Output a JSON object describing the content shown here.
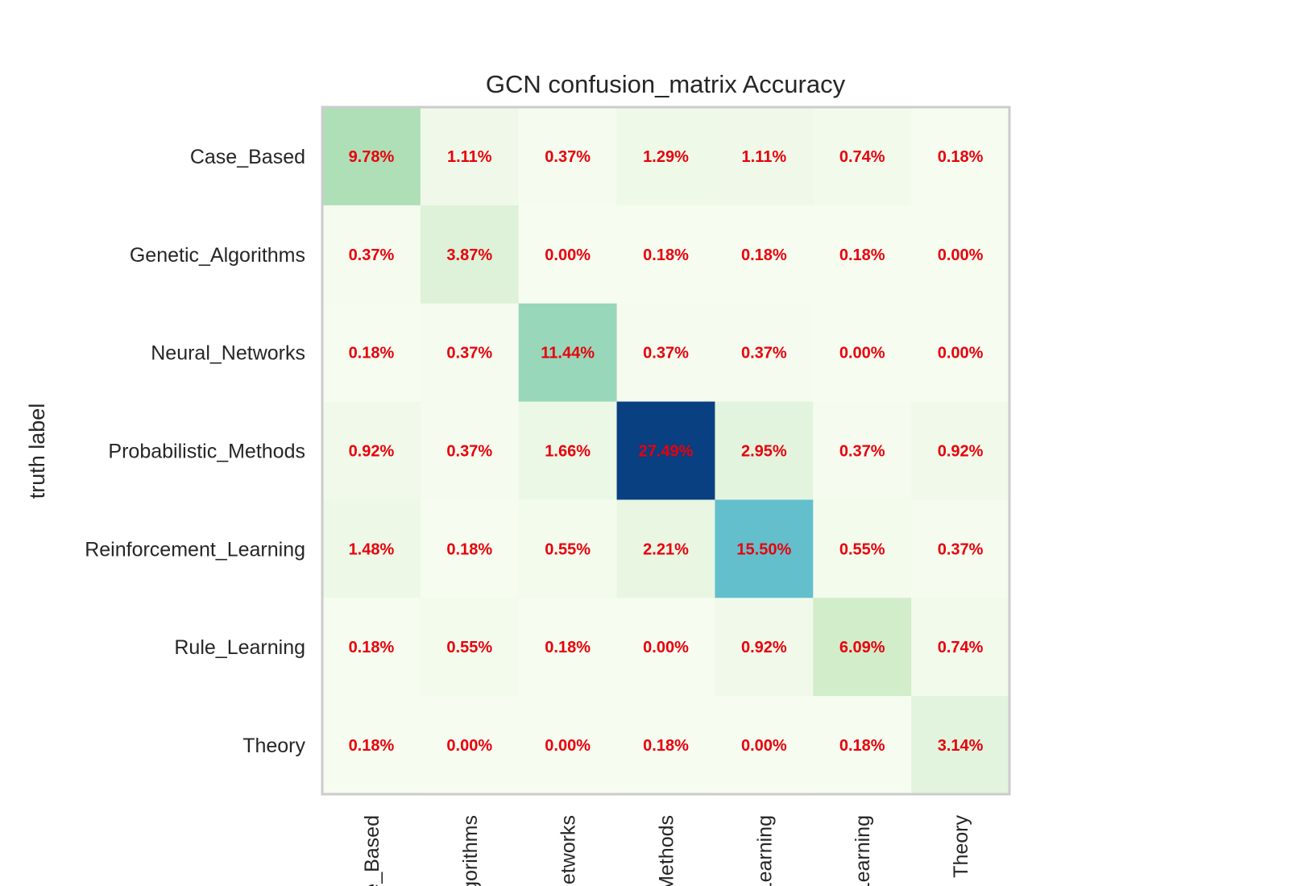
{
  "chart_data": {
    "type": "heatmap",
    "title": "GCN confusion_matrix Accuracy",
    "ylabel": "truth label",
    "xlabel": "",
    "row_labels": [
      "Case_Based",
      "Genetic_Algorithms",
      "Neural_Networks",
      "Probabilistic_Methods",
      "Reinforcement_Learning",
      "Rule_Learning",
      "Theory"
    ],
    "col_labels": [
      "Case_Based",
      "Genetic_Algorithms",
      "Neural_Networks",
      "Probabilistic_Methods",
      "Reinforcement_Learning",
      "Rule_Learning",
      "Theory"
    ],
    "col_labels_visible": [
      "e_Based",
      "gorithms",
      "etworks",
      "Methods",
      "Learning",
      "Learning",
      "Theory"
    ],
    "values": [
      [
        9.78,
        1.11,
        0.37,
        1.29,
        1.11,
        0.74,
        0.18
      ],
      [
        0.37,
        3.87,
        0.0,
        0.18,
        0.18,
        0.18,
        0.0
      ],
      [
        0.18,
        0.37,
        11.44,
        0.37,
        0.37,
        0.0,
        0.0
      ],
      [
        0.92,
        0.37,
        1.66,
        27.49,
        2.95,
        0.37,
        0.92
      ],
      [
        1.48,
        0.18,
        0.55,
        2.21,
        15.5,
        0.55,
        0.37
      ],
      [
        0.18,
        0.55,
        0.18,
        0.0,
        0.92,
        6.09,
        0.74
      ],
      [
        0.18,
        0.0,
        0.0,
        0.18,
        0.0,
        0.18,
        3.14
      ]
    ],
    "value_suffix": "%",
    "colormap": "GnBu",
    "annotation_color": "#e8000b",
    "frame_color": "#cccccc",
    "grid": false
  }
}
